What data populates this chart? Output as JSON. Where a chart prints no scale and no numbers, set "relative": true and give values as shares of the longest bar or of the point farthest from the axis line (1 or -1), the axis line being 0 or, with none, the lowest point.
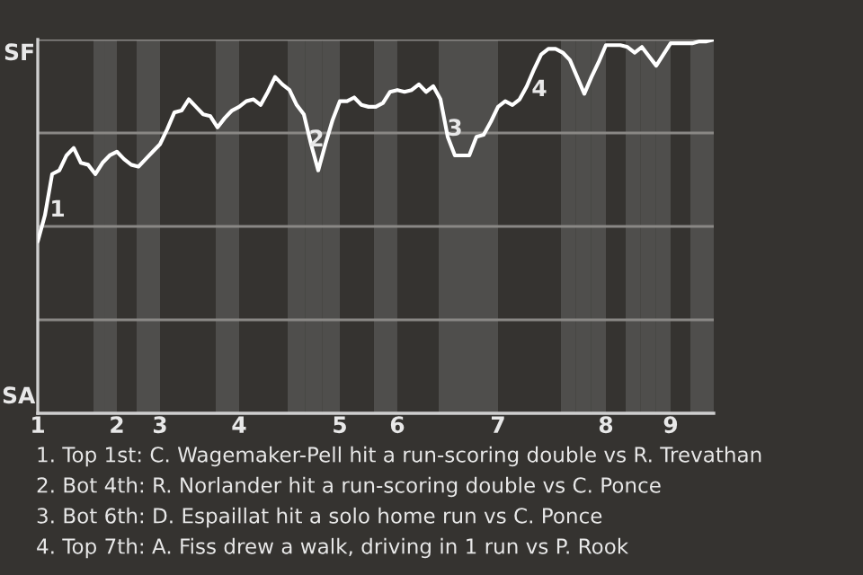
{
  "chart_data": {
    "type": "line",
    "relative": true,
    "categories": [
      "1",
      null,
      null,
      null,
      null,
      null,
      null,
      null,
      null,
      null,
      null,
      "2",
      null,
      null,
      null,
      null,
      null,
      "3",
      null,
      null,
      null,
      null,
      null,
      null,
      null,
      null,
      null,
      null,
      "4",
      null,
      null,
      null,
      null,
      null,
      null,
      null,
      null,
      null,
      null,
      null,
      null,
      null,
      "5",
      null,
      null,
      null,
      null,
      null,
      null,
      null,
      "6",
      null,
      null,
      null,
      null,
      null,
      null,
      null,
      null,
      null,
      null,
      null,
      null,
      null,
      "7",
      null,
      null,
      null,
      null,
      null,
      null,
      null,
      null,
      null,
      null,
      null,
      null,
      null,
      null,
      "8",
      null,
      null,
      null,
      null,
      null,
      null,
      null,
      null,
      "9",
      null,
      null,
      null,
      null,
      null,
      null
    ],
    "series": [
      {
        "color": "#ffffff",
        "values": [
          0.46,
          0.53,
          0.64,
          0.65,
          0.69,
          0.71,
          0.67,
          0.665,
          0.64,
          0.67,
          0.69,
          0.7,
          0.68,
          0.665,
          0.66,
          0.68,
          0.7,
          0.72,
          0.76,
          0.805,
          0.81,
          0.84,
          0.82,
          0.8,
          0.795,
          0.765,
          0.79,
          0.81,
          0.82,
          0.835,
          0.84,
          0.825,
          0.86,
          0.9,
          0.88,
          0.865,
          0.825,
          0.8,
          0.72,
          0.65,
          0.72,
          0.785,
          0.835,
          0.835,
          0.845,
          0.825,
          0.82,
          0.82,
          0.83,
          0.86,
          0.865,
          0.86,
          0.865,
          0.88,
          0.86,
          0.875,
          0.84,
          0.74,
          0.69,
          0.69,
          0.69,
          0.74,
          0.745,
          0.78,
          0.82,
          0.835,
          0.825,
          0.84,
          0.875,
          0.92,
          0.96,
          0.975,
          0.975,
          0.965,
          0.945,
          0.9,
          0.855,
          0.9,
          0.94,
          0.985,
          0.985,
          0.985,
          0.98,
          0.965,
          0.98,
          0.955,
          0.93,
          0.96,
          0.99,
          0.99,
          0.99,
          0.99,
          0.995,
          0.995,
          1.0
        ]
      }
    ],
    "ref_lines": [
      {
        "axis": "y",
        "value": 0.25,
        "color": "#8a8885"
      },
      {
        "axis": "y",
        "value": 0.5,
        "color": "#8a8885"
      },
      {
        "axis": "y",
        "value": 0.75,
        "color": "#8a8885"
      },
      {
        "axis": "y",
        "value": 1.0,
        "color": "#8a8885"
      }
    ],
    "annotations": [
      "SF",
      "SA",
      "1",
      "2",
      "3",
      "4",
      "1. Top 1st: C. Wagemaker-Pell hit a run-scoring double vs R. Trevathan",
      "2. Bot 4th: R. Norlander hit a run-scoring double vs C. Ponce",
      "3. Bot 6th: D. Espaillat hit a solo home run vs C. Ponce",
      "4. Top 7th: A. Fiss drew a walk, driving in 1 run vs P. Rook"
    ],
    "marker": "none",
    "line_style": "solid"
  }
}
